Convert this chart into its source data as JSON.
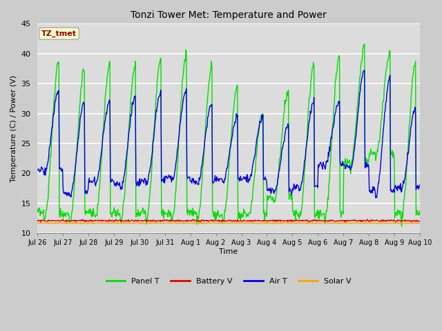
{
  "title": "Tonzi Tower Met: Temperature and Power",
  "xlabel": "Time",
  "ylabel": "Temperature (C) / Power (V)",
  "ylim": [
    10,
    45
  ],
  "yticks": [
    10,
    15,
    20,
    25,
    30,
    35,
    40,
    45
  ],
  "annotation": "TZ_tmet",
  "annotation_color": "#8B0000",
  "annotation_bg": "#FFFFCC",
  "fig_bg_color": "#D8D8D8",
  "plot_bg_color": "#DCDCDC",
  "grid_color": "#FFFFFF",
  "panel_t_color": "#00DD00",
  "battery_v_color": "#DD0000",
  "air_t_color": "#0000DD",
  "solar_v_color": "#FFA500",
  "x_labels": [
    "Jul 26",
    "Jul 27",
    "Jul 28",
    "Jul 29",
    "Jul 30",
    "Jul 31",
    "Aug 1",
    "Aug 2",
    "Aug 3",
    "Aug 4",
    "Aug 5",
    "Aug 6",
    "Aug 7",
    "Aug 8",
    "Aug 9",
    "Aug 10"
  ],
  "panel_t_peaks": [
    39,
    37.5,
    38.5,
    38.5,
    39.5,
    40,
    38,
    34.5,
    30,
    34,
    38,
    39.5,
    41.5,
    40.5,
    38.5,
    36
  ],
  "panel_t_mins": [
    12,
    12,
    12,
    12,
    12,
    12,
    12,
    12,
    12.5,
    15,
    12,
    12,
    21,
    22.5,
    12,
    12
  ],
  "air_t_peaks": [
    34,
    32,
    32.5,
    33,
    33.5,
    34,
    31.5,
    29.5,
    29.5,
    28,
    32,
    32,
    37.5,
    36,
    31,
    31
  ],
  "air_t_mins": [
    20,
    16,
    18,
    17.5,
    18,
    18.5,
    18,
    18.5,
    18.5,
    16.5,
    17,
    21,
    20.5,
    16,
    17,
    17
  ],
  "battery_v_level": 12.1,
  "solar_v_level": 11.7
}
